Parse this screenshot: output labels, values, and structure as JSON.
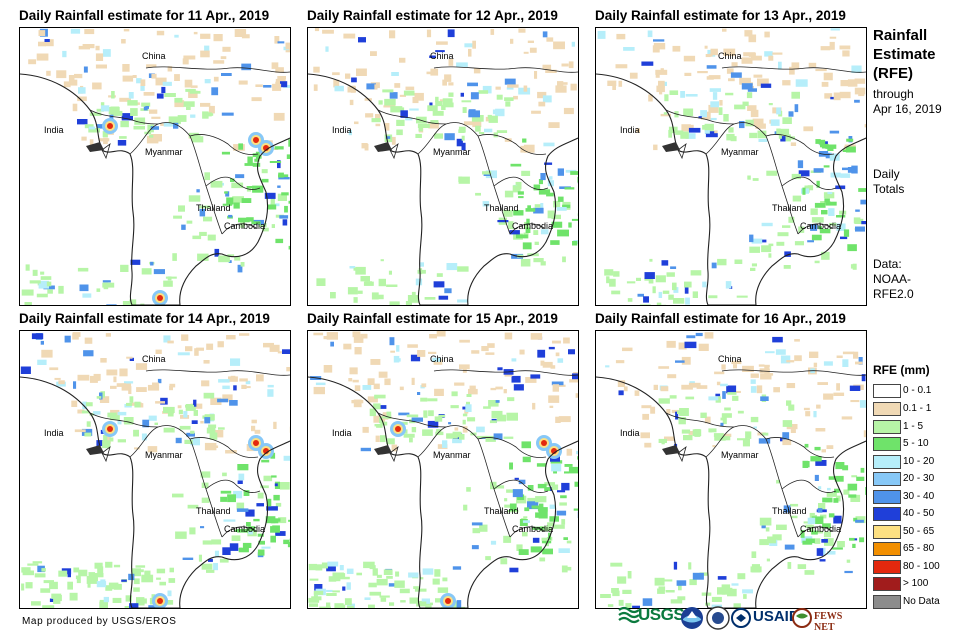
{
  "panels": [
    {
      "title": "Daily Rainfall estimate for 11 Apr., 2019"
    },
    {
      "title": "Daily Rainfall estimate for 12 Apr., 2019"
    },
    {
      "title": "Daily Rainfall estimate for 13 Apr., 2019"
    },
    {
      "title": "Daily Rainfall estimate for 14 Apr., 2019"
    },
    {
      "title": "Daily Rainfall estimate for 15 Apr., 2019"
    },
    {
      "title": "Daily Rainfall estimate for 16 Apr., 2019"
    }
  ],
  "map_labels": {
    "china": "China",
    "india": "India",
    "myanmar": "Myanmar",
    "thailand": "Thailand",
    "cambodia": "Cambodia"
  },
  "sidebar": {
    "title_lines": [
      "Rainfall",
      "Estimate",
      "(RFE)"
    ],
    "through_lines": [
      "through",
      "Apr 16, 2019"
    ],
    "totals_lines": [
      "Daily",
      "Totals"
    ],
    "data_lines": [
      "Data:",
      "NOAA-",
      "RFE2.0"
    ]
  },
  "legend": {
    "title": "RFE (mm)",
    "items": [
      {
        "label": "0 - 0.1",
        "color": "#ffffff"
      },
      {
        "label": "0.1 - 1",
        "color": "#f0d9b5"
      },
      {
        "label": "1 - 5",
        "color": "#b7f5a7"
      },
      {
        "label": "5 - 10",
        "color": "#6fe36a"
      },
      {
        "label": "10 - 20",
        "color": "#b6eefa"
      },
      {
        "label": "20 - 30",
        "color": "#87c8f7"
      },
      {
        "label": "30 - 40",
        "color": "#4f93ea"
      },
      {
        "label": "40 - 50",
        "color": "#1f3fd9"
      },
      {
        "label": "50 - 65",
        "color": "#fde082"
      },
      {
        "label": "65 - 80",
        "color": "#f28f00"
      },
      {
        "label": "80 - 100",
        "color": "#e3280e"
      },
      {
        "label": "> 100",
        "color": "#a11c1c"
      },
      {
        "label": "No Data",
        "color": "#8c8c8c"
      }
    ]
  },
  "footer": {
    "credit": "Map produced by USGS/EROS"
  },
  "logos": {
    "usgs": "USGS",
    "usaid": "USAID",
    "fewsnet": "FEWS NET"
  }
}
